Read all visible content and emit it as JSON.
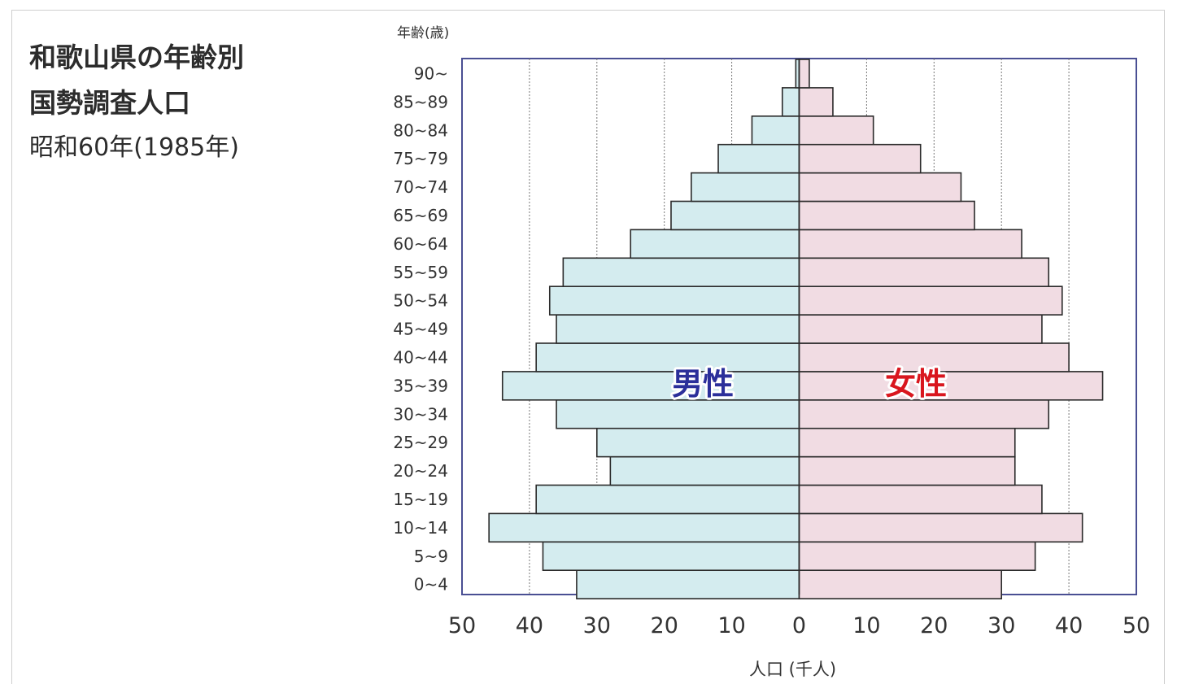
{
  "title_lines": [
    "和歌山県の年齢別",
    "国勢調査人口"
  ],
  "subtitle": "昭和60年(1985年)",
  "colors": {
    "male_fill": "#d4ecef",
    "female_fill": "#f1dce3",
    "bar_stroke": "#2a2a2a",
    "plot_border": "#4a4f93",
    "grid": "#777777",
    "male_label": "#2b2f9a",
    "female_label": "#d9161e",
    "text": "#333333"
  },
  "chart_data": {
    "type": "bar",
    "orientation": "horizontal-population-pyramid",
    "categories": [
      "0~4",
      "5~9",
      "10~14",
      "15~19",
      "20~24",
      "25~29",
      "30~34",
      "35~39",
      "40~44",
      "45~49",
      "50~54",
      "55~59",
      "60~64",
      "65~69",
      "70~74",
      "75~79",
      "80~84",
      "85~89",
      "90~"
    ],
    "series": [
      {
        "name": "男性",
        "side": "left",
        "values": [
          33,
          38,
          46,
          39,
          28,
          30,
          36,
          44,
          39,
          36,
          37,
          35,
          25,
          19,
          16,
          12,
          7,
          2.5,
          0.5
        ]
      },
      {
        "name": "女性",
        "side": "right",
        "values": [
          30,
          35,
          42,
          36,
          32,
          32,
          37,
          45,
          40,
          36,
          39,
          37,
          33,
          26,
          24,
          18,
          11,
          5,
          1.5
        ]
      }
    ],
    "ylabel": "年齢(歳)",
    "xlabel": "人口 (千人)",
    "xlim": [
      0,
      50
    ],
    "xticks": [
      50,
      40,
      30,
      20,
      10,
      0,
      10,
      20,
      30,
      40,
      50
    ],
    "grid": "vertical dotted at every 10",
    "legend": "inline labels over bars"
  }
}
